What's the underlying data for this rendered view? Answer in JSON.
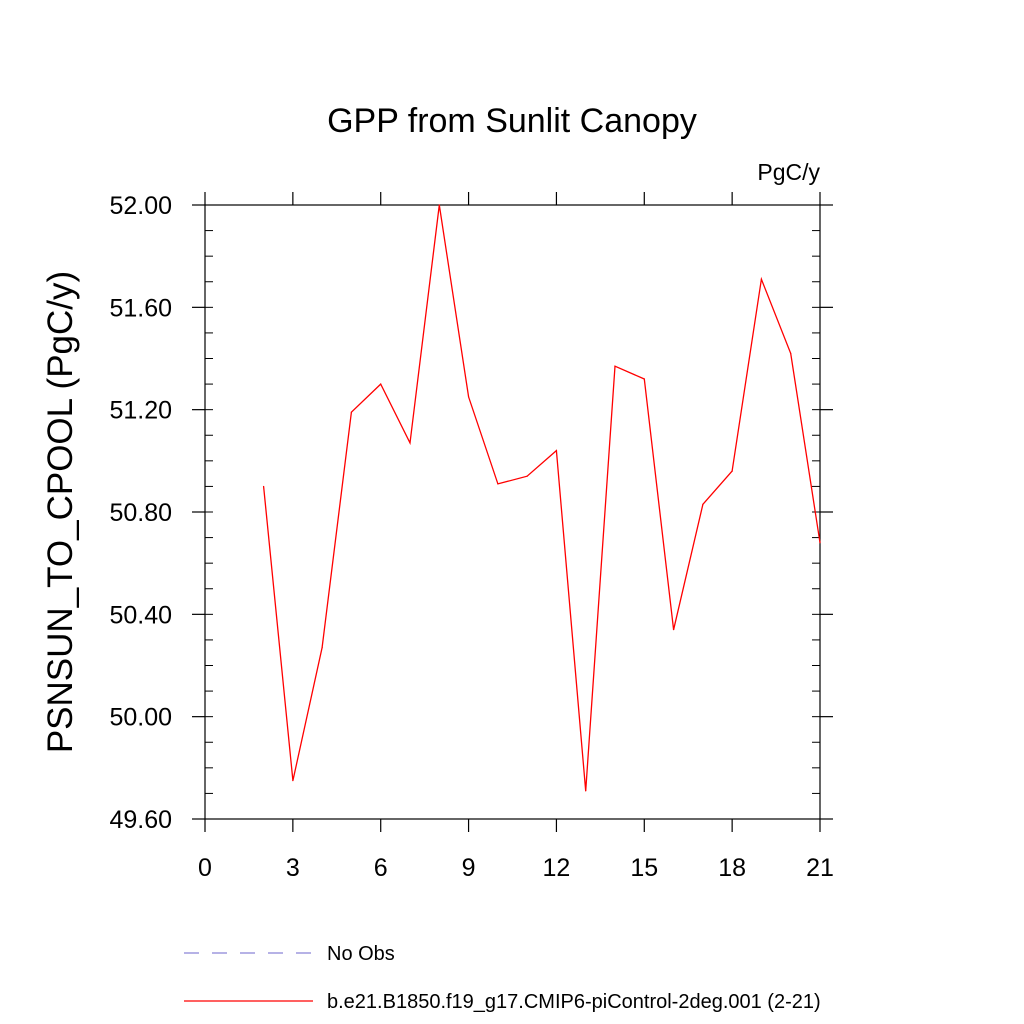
{
  "chart_data": {
    "type": "line",
    "title": "GPP from Sunlit Canopy",
    "units_label": "PgC/y",
    "ylabel": "PSNSUN_TO_CPOOL  (PgC/y)",
    "xlabel": "",
    "xlim": [
      0,
      21
    ],
    "ylim": [
      49.6,
      52.0
    ],
    "x_ticks": [
      "0",
      "3",
      "6",
      "9",
      "12",
      "15",
      "18",
      "21"
    ],
    "y_ticks": [
      "49.60",
      "50.00",
      "50.40",
      "50.80",
      "51.20",
      "51.60",
      "52.00"
    ],
    "grid": false,
    "legend_position": "bottom",
    "series": [
      {
        "name": "b.e21.B1850.f19_g17.CMIP6-piControl-2deg.001 (2-21)",
        "color": "#ff0000",
        "style": "solid",
        "x": [
          2,
          3,
          4,
          5,
          6,
          7,
          8,
          9,
          10,
          11,
          12,
          13,
          14,
          15,
          16,
          17,
          18,
          19,
          20,
          21
        ],
        "y": [
          50.9,
          49.75,
          50.27,
          51.19,
          51.3,
          51.07,
          52.0,
          51.25,
          50.91,
          50.94,
          51.04,
          49.71,
          51.37,
          51.32,
          50.34,
          50.83,
          50.96,
          51.71,
          51.42,
          50.68
        ]
      }
    ],
    "legend": [
      {
        "label": "No Obs",
        "color": "#8a85d8",
        "style": "dashed"
      },
      {
        "label": "b.e21.B1850.f19_g17.CMIP6-piControl-2deg.001 (2-21)",
        "color": "#ff0000",
        "style": "solid"
      }
    ]
  }
}
